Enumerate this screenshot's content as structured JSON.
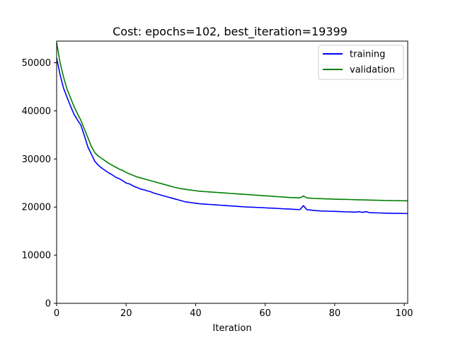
{
  "chart_data": {
    "type": "line",
    "title": "Cost: epochs=102, best_iteration=19399",
    "xlabel": "Iteration",
    "ylabel": "",
    "xlim": [
      0,
      101
    ],
    "ylim": [
      0,
      54500
    ],
    "xticks": [
      0,
      20,
      40,
      60,
      80,
      100
    ],
    "yticks": [
      0,
      10000,
      20000,
      30000,
      40000,
      50000
    ],
    "grid": false,
    "legend_position": "upper right",
    "series": [
      {
        "name": "training",
        "color": "#0000ff",
        "x": [
          0,
          1,
          2,
          3,
          4,
          5,
          6,
          7,
          8,
          9,
          10,
          11,
          12,
          13,
          14,
          15,
          16,
          17,
          18,
          19,
          20,
          21,
          22,
          23,
          24,
          25,
          26,
          27,
          28,
          29,
          30,
          31,
          32,
          33,
          34,
          35,
          36,
          37,
          38,
          39,
          40,
          41,
          42,
          43,
          44,
          45,
          46,
          47,
          48,
          49,
          50,
          51,
          52,
          53,
          54,
          55,
          56,
          57,
          58,
          59,
          60,
          61,
          62,
          63,
          64,
          65,
          66,
          67,
          68,
          69,
          70,
          71,
          72,
          73,
          74,
          75,
          76,
          77,
          78,
          79,
          80,
          81,
          82,
          83,
          84,
          85,
          86,
          87,
          88,
          89,
          90,
          91,
          92,
          93,
          94,
          95,
          96,
          97,
          98,
          99,
          100,
          101
        ],
        "values": [
          51000,
          47500,
          44700,
          42800,
          41000,
          39300,
          38100,
          37000,
          34800,
          32500,
          31000,
          29500,
          28700,
          28100,
          27600,
          27100,
          26700,
          26200,
          25900,
          25500,
          25000,
          24800,
          24400,
          24100,
          23800,
          23600,
          23400,
          23200,
          22900,
          22700,
          22500,
          22300,
          22100,
          21900,
          21700,
          21500,
          21300,
          21100,
          21000,
          20900,
          20800,
          20700,
          20650,
          20600,
          20550,
          20500,
          20450,
          20400,
          20350,
          20300,
          20250,
          20200,
          20150,
          20100,
          20050,
          20000,
          19980,
          19950,
          19920,
          19900,
          19850,
          19800,
          19780,
          19750,
          19700,
          19650,
          19620,
          19600,
          19550,
          19500,
          19480,
          20300,
          19450,
          19400,
          19300,
          19250,
          19200,
          19180,
          19150,
          19120,
          19100,
          19080,
          19050,
          19020,
          19000,
          18980,
          18950,
          19050,
          18900,
          19050,
          18850,
          18820,
          18800,
          18780,
          18760,
          18740,
          18720,
          18700,
          18690,
          18680,
          18670,
          18660
        ]
      },
      {
        "name": "validation",
        "color": "#008000",
        "x": [
          0,
          1,
          2,
          3,
          4,
          5,
          6,
          7,
          8,
          9,
          10,
          11,
          12,
          13,
          14,
          15,
          16,
          17,
          18,
          19,
          20,
          21,
          22,
          23,
          24,
          25,
          26,
          27,
          28,
          29,
          30,
          31,
          32,
          33,
          34,
          35,
          36,
          37,
          38,
          39,
          40,
          41,
          42,
          43,
          44,
          45,
          46,
          47,
          48,
          49,
          50,
          51,
          52,
          53,
          54,
          55,
          56,
          57,
          58,
          59,
          60,
          61,
          62,
          63,
          64,
          65,
          66,
          67,
          68,
          69,
          70,
          71,
          72,
          73,
          74,
          75,
          76,
          77,
          78,
          79,
          80,
          81,
          82,
          83,
          84,
          85,
          86,
          87,
          88,
          89,
          90,
          91,
          92,
          93,
          94,
          95,
          96,
          97,
          98,
          99,
          100,
          101
        ],
        "values": [
          54200,
          50000,
          47000,
          44500,
          42700,
          40900,
          39400,
          38000,
          36200,
          34400,
          32600,
          31300,
          30600,
          30100,
          29600,
          29100,
          28700,
          28300,
          27900,
          27600,
          27200,
          26900,
          26600,
          26300,
          26100,
          25900,
          25700,
          25500,
          25300,
          25100,
          24900,
          24700,
          24500,
          24300,
          24100,
          23950,
          23800,
          23700,
          23600,
          23500,
          23400,
          23300,
          23250,
          23200,
          23150,
          23100,
          23050,
          23000,
          22950,
          22900,
          22850,
          22800,
          22750,
          22700,
          22650,
          22600,
          22550,
          22500,
          22450,
          22400,
          22350,
          22300,
          22250,
          22200,
          22150,
          22100,
          22050,
          22000,
          21980,
          21950,
          21920,
          22300,
          21900,
          21850,
          21800,
          21780,
          21750,
          21720,
          21700,
          21680,
          21650,
          21630,
          21610,
          21600,
          21580,
          21560,
          21540,
          21520,
          21500,
          21480,
          21460,
          21440,
          21420,
          21400,
          21380,
          21360,
          21350,
          21340,
          21330,
          21320,
          21310,
          21300
        ]
      }
    ]
  }
}
